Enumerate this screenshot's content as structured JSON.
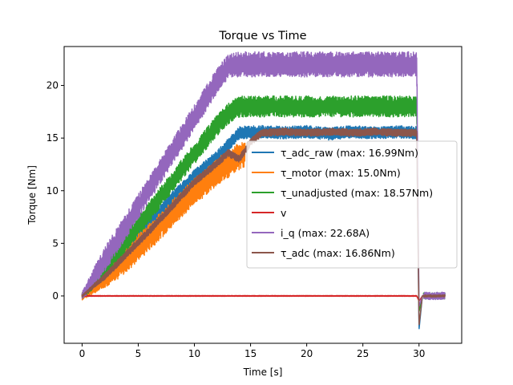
{
  "chart_data": {
    "type": "line",
    "title": "Torque vs Time",
    "xlabel": "Time [s]",
    "ylabel": "Torque [Nm]",
    "xlim": [
      -1.6,
      33.8
    ],
    "ylim": [
      -4.5,
      23.7
    ],
    "xticks": [
      0,
      5,
      10,
      15,
      20,
      25,
      30
    ],
    "yticks": [
      0,
      5,
      10,
      15,
      20
    ],
    "grid": false,
    "legend_position": "center-right",
    "series": [
      {
        "name": "τ_adc_raw (max: 16.99Nm)",
        "color": "#1f77b4",
        "noise": 0.6,
        "x": [
          0,
          2,
          4,
          6,
          8,
          10,
          12,
          14,
          16,
          18,
          20,
          22,
          24,
          26,
          28,
          29.8,
          30.0,
          30.3,
          31,
          32.3
        ],
        "y": [
          0,
          2.2,
          4.6,
          6.8,
          9.3,
          11.4,
          13.2,
          15.5,
          15.6,
          15.5,
          15.6,
          15.4,
          15.6,
          15.5,
          15.6,
          15.5,
          -3.2,
          0,
          0,
          0
        ]
      },
      {
        "name": "τ_motor (max: 15.0Nm)",
        "color": "#ff7f0e",
        "noise": 1.3,
        "x": [
          0,
          2,
          4,
          6,
          8,
          10,
          11,
          12,
          13,
          14,
          14.5
        ],
        "y": [
          0,
          1.7,
          3.6,
          5.6,
          7.8,
          9.9,
          10.8,
          11.8,
          12.5,
          13.3,
          13.5
        ]
      },
      {
        "name": "τ_unadjusted (max: 18.57Nm)",
        "color": "#2ca02c",
        "noise": 1.0,
        "x": [
          0,
          2,
          4,
          6,
          8,
          10,
          12,
          13,
          14,
          16,
          18,
          20,
          22,
          24,
          26,
          28,
          29.8,
          30.0,
          30.3,
          31,
          32.3
        ],
        "y": [
          0,
          2.6,
          5.3,
          8.0,
          10.8,
          13.5,
          16.2,
          17.3,
          18,
          18,
          18,
          18,
          18,
          18,
          18,
          18,
          18,
          -1.5,
          0,
          0,
          0
        ]
      },
      {
        "name": "v",
        "color": "#d62728",
        "noise": 0.12,
        "x": [
          0,
          5,
          10,
          15,
          20,
          25,
          29.8,
          30.0,
          30.3,
          31,
          32.3
        ],
        "y": [
          0,
          0,
          0,
          0,
          0,
          0,
          0,
          -0.5,
          0,
          0,
          0
        ]
      },
      {
        "name": "i_q (max: 22.68A)",
        "color": "#9467bd",
        "noise": 1.2,
        "x": [
          0,
          2,
          4,
          6,
          8,
          10,
          11,
          12,
          13,
          14,
          16,
          18,
          20,
          22,
          24,
          26,
          28,
          29.8,
          30.0,
          30.3,
          31,
          32.3
        ],
        "y": [
          0,
          3.4,
          6.8,
          10.2,
          13.6,
          17.0,
          18.7,
          20.4,
          21.8,
          22,
          22,
          22,
          22,
          22,
          22,
          22,
          22,
          22,
          -1.0,
          0,
          0,
          0
        ]
      },
      {
        "name": "τ_adc (max: 16.86Nm)",
        "color": "#8c564b",
        "noise": 0.35,
        "x": [
          0,
          2,
          4,
          6,
          8,
          10,
          12,
          13,
          14,
          15,
          16,
          18,
          20,
          22,
          24,
          26,
          28,
          29.8,
          30.0,
          30.3,
          31,
          32.3
        ],
        "y": [
          0,
          1.8,
          4.0,
          6.2,
          8.5,
          10.8,
          12.6,
          13.6,
          13.0,
          14.6,
          15.5,
          15.6,
          15.5,
          15.6,
          15.5,
          15.6,
          15.5,
          15.5,
          -2.8,
          0,
          0,
          0
        ]
      }
    ]
  }
}
